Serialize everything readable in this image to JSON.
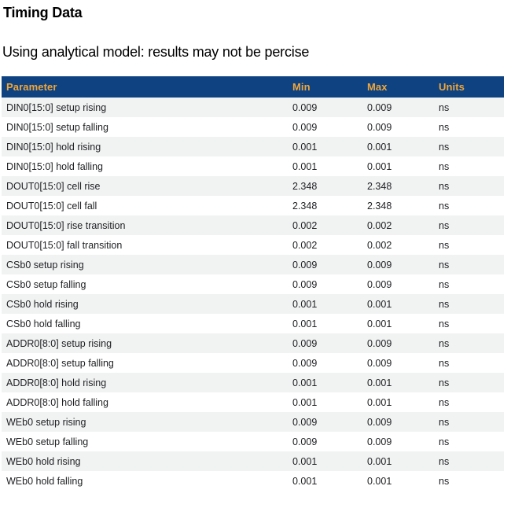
{
  "page": {
    "title": "Timing Data",
    "subtitle": "Using analytical model: results may not be percise"
  },
  "table": {
    "columns": [
      "Parameter",
      "Min",
      "Max",
      "Units"
    ],
    "rows": [
      {
        "parameter": "DIN0[15:0] setup rising",
        "min": "0.009",
        "max": "0.009",
        "units": "ns"
      },
      {
        "parameter": "DIN0[15:0] setup falling",
        "min": "0.009",
        "max": "0.009",
        "units": "ns"
      },
      {
        "parameter": "DIN0[15:0] hold rising",
        "min": "0.001",
        "max": "0.001",
        "units": "ns"
      },
      {
        "parameter": "DIN0[15:0] hold falling",
        "min": "0.001",
        "max": "0.001",
        "units": "ns"
      },
      {
        "parameter": "DOUT0[15:0] cell rise",
        "min": "2.348",
        "max": "2.348",
        "units": "ns"
      },
      {
        "parameter": "DOUT0[15:0] cell fall",
        "min": "2.348",
        "max": "2.348",
        "units": "ns"
      },
      {
        "parameter": "DOUT0[15:0] rise transition",
        "min": "0.002",
        "max": "0.002",
        "units": "ns"
      },
      {
        "parameter": "DOUT0[15:0] fall transition",
        "min": "0.002",
        "max": "0.002",
        "units": "ns"
      },
      {
        "parameter": "CSb0 setup rising",
        "min": "0.009",
        "max": "0.009",
        "units": "ns"
      },
      {
        "parameter": "CSb0 setup falling",
        "min": "0.009",
        "max": "0.009",
        "units": "ns"
      },
      {
        "parameter": "CSb0 hold rising",
        "min": "0.001",
        "max": "0.001",
        "units": "ns"
      },
      {
        "parameter": "CSb0 hold falling",
        "min": "0.001",
        "max": "0.001",
        "units": "ns"
      },
      {
        "parameter": "ADDR0[8:0] setup rising",
        "min": "0.009",
        "max": "0.009",
        "units": "ns"
      },
      {
        "parameter": "ADDR0[8:0] setup falling",
        "min": "0.009",
        "max": "0.009",
        "units": "ns"
      },
      {
        "parameter": "ADDR0[8:0] hold rising",
        "min": "0.001",
        "max": "0.001",
        "units": "ns"
      },
      {
        "parameter": "ADDR0[8:0] hold falling",
        "min": "0.001",
        "max": "0.001",
        "units": "ns"
      },
      {
        "parameter": "WEb0 setup rising",
        "min": "0.009",
        "max": "0.009",
        "units": "ns"
      },
      {
        "parameter": "WEb0 setup falling",
        "min": "0.009",
        "max": "0.009",
        "units": "ns"
      },
      {
        "parameter": "WEb0 hold rising",
        "min": "0.001",
        "max": "0.001",
        "units": "ns"
      },
      {
        "parameter": "WEb0 hold falling",
        "min": "0.001",
        "max": "0.001",
        "units": "ns"
      }
    ]
  },
  "colors": {
    "header_bg": "#0e4281",
    "header_text": "#f0a63a",
    "stripe_bg": "#f1f2f2",
    "row_text": "#212225",
    "title_text": "#000000",
    "page_bg": "#ffffff"
  }
}
